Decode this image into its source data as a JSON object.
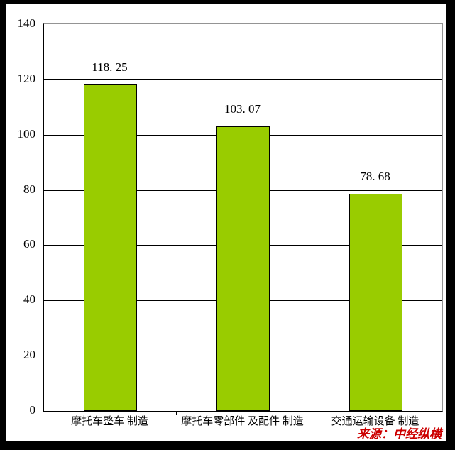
{
  "source_label": "来源：中经纵横",
  "colors": {
    "bar_fill": "#99CC00",
    "bar_border": "#000000",
    "gridline": "#000000",
    "axis": "#000000",
    "plot_border": "#949494",
    "source_text": "#CC0000",
    "frame": "#000000",
    "background": "#FFFFFF"
  },
  "chart_data": {
    "type": "bar",
    "title": "",
    "xlabel": "",
    "ylabel": "",
    "categories": [
      "摩托车整车 制造",
      "摩托车零部件 及配件 制造",
      "交通运输设备 制造"
    ],
    "values": [
      118.25,
      103.07,
      78.68
    ],
    "value_labels": [
      "118. 25",
      "103. 07",
      "78. 68"
    ],
    "ylim": [
      0,
      140
    ],
    "yticks": [
      0,
      20,
      40,
      60,
      80,
      100,
      120,
      140
    ],
    "grid": true,
    "legend_position": "none"
  }
}
